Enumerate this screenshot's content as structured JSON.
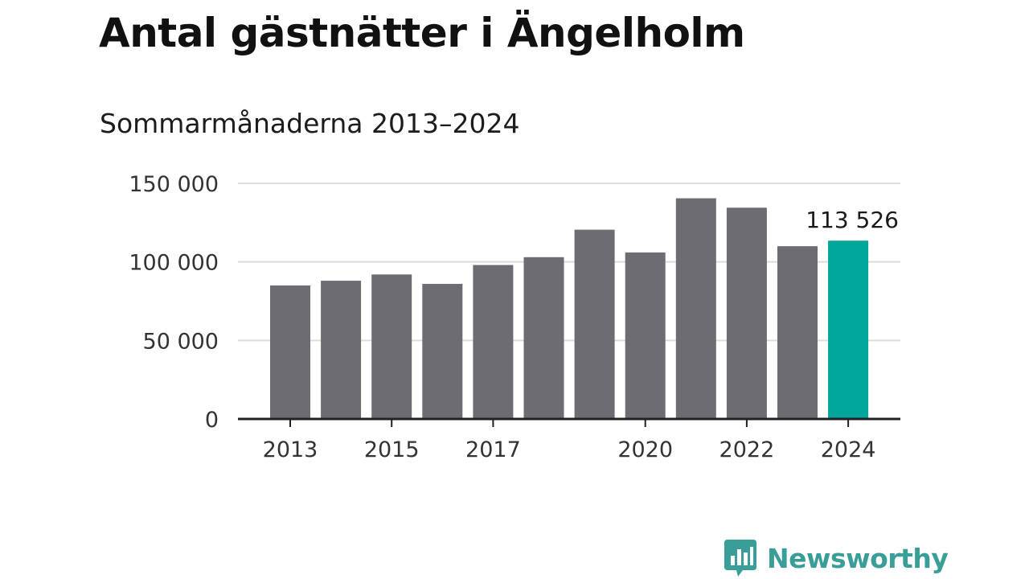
{
  "chart_data": {
    "type": "bar",
    "title": "Antal gästnätter i Ängelholm",
    "subtitle": "Sommarmånaderna 2013–2024",
    "categories": [
      "2013",
      "2014",
      "2015",
      "2016",
      "2017",
      "2018",
      "2019",
      "2020",
      "2021",
      "2022",
      "2023",
      "2024"
    ],
    "values": [
      85000,
      88000,
      92000,
      86000,
      98000,
      103000,
      120500,
      106000,
      140500,
      134500,
      110000,
      113526
    ],
    "x_tick_labels": [
      "2013",
      "2015",
      "2017",
      "2020",
      "2022",
      "2024"
    ],
    "y_ticks": [
      0,
      50000,
      100000,
      150000
    ],
    "y_tick_labels": [
      "0",
      "50 000",
      "100 000",
      "150 000"
    ],
    "ylim": [
      0,
      150000
    ],
    "highlight": {
      "category": "2024",
      "label": "113 526"
    },
    "bar_color": "#6d6c72",
    "highlight_color": "#00a699",
    "grid": true,
    "xlabel": "",
    "ylabel": ""
  },
  "brand": {
    "name": "Newsworthy",
    "icon": "newsworthy-chart-bubble-icon",
    "color": "#3a9e98"
  }
}
